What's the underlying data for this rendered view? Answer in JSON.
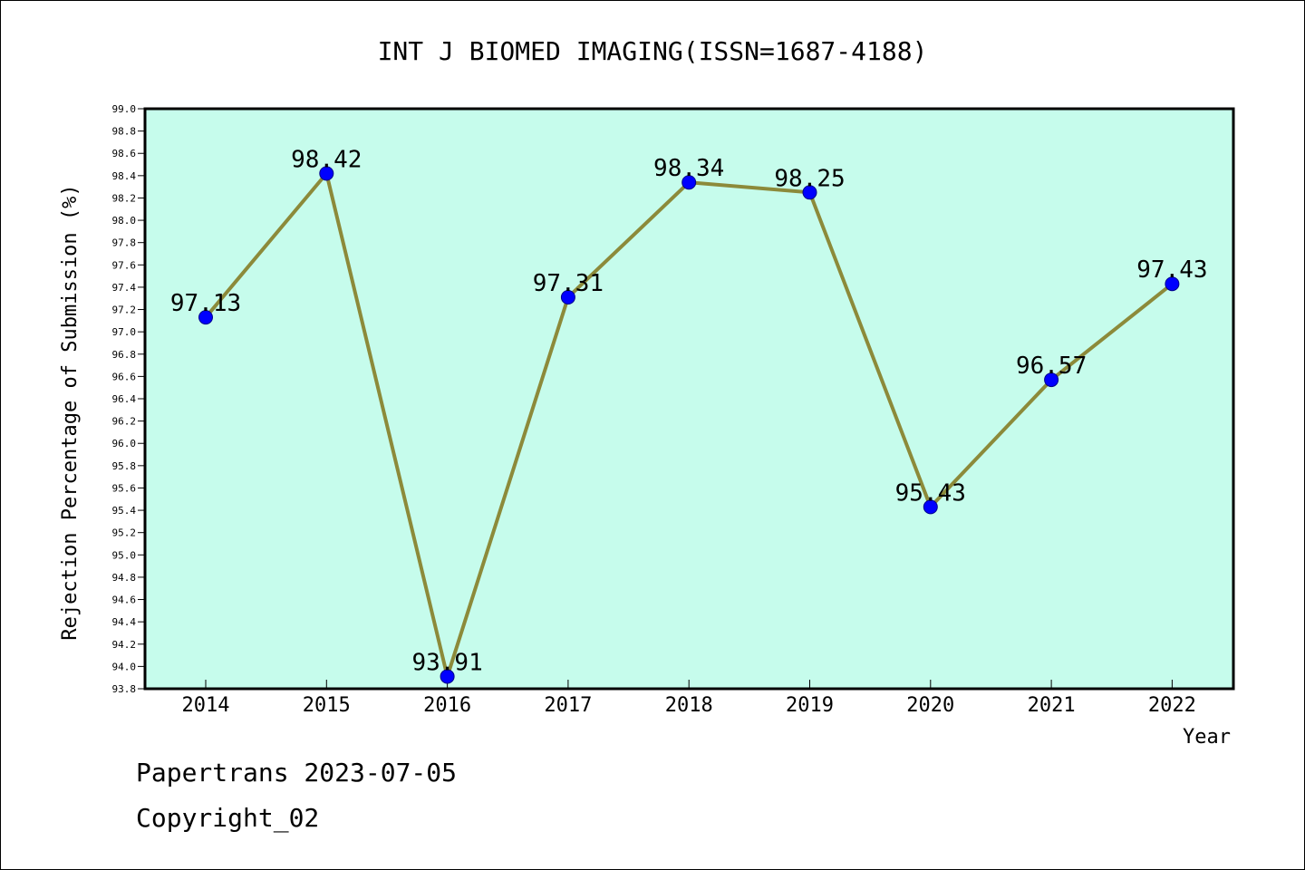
{
  "chart_data": {
    "type": "line",
    "title": "INT J BIOMED IMAGING(ISSN=1687-4188)",
    "xlabel": "Year",
    "ylabel": "Rejection Percentage of Submission (%)",
    "categories": [
      "2014",
      "2015",
      "2016",
      "2017",
      "2018",
      "2019",
      "2020",
      "2021",
      "2022"
    ],
    "series": [
      {
        "values": [
          97.13,
          98.42,
          93.91,
          97.31,
          98.34,
          98.25,
          95.43,
          96.57,
          97.43
        ],
        "data_labels": [
          "97.13",
          "98.42",
          "93.91",
          "97.31",
          "98.34",
          "98.25",
          "95.43",
          "96.57",
          "97.43"
        ]
      }
    ],
    "ylim": [
      93.8,
      99.0
    ],
    "yticks": [
      "93.8",
      "94.0",
      "94.2",
      "94.4",
      "94.6",
      "94.8",
      "95.0",
      "95.2",
      "95.4",
      "95.6",
      "95.8",
      "96.0",
      "96.2",
      "96.4",
      "96.6",
      "96.8",
      "97.0",
      "97.2",
      "97.4",
      "97.6",
      "97.8",
      "98.0",
      "98.2",
      "98.4",
      "98.6",
      "98.8",
      "99.0"
    ],
    "grid": false,
    "legend": "none",
    "colors": {
      "plot_background": "#c6fcec",
      "line": "#8c8a3a",
      "marker": "#0000ff",
      "axis": "#000000"
    }
  },
  "footer": {
    "line1": "Papertrans 2023-07-05",
    "line2": "Copyright_02"
  }
}
